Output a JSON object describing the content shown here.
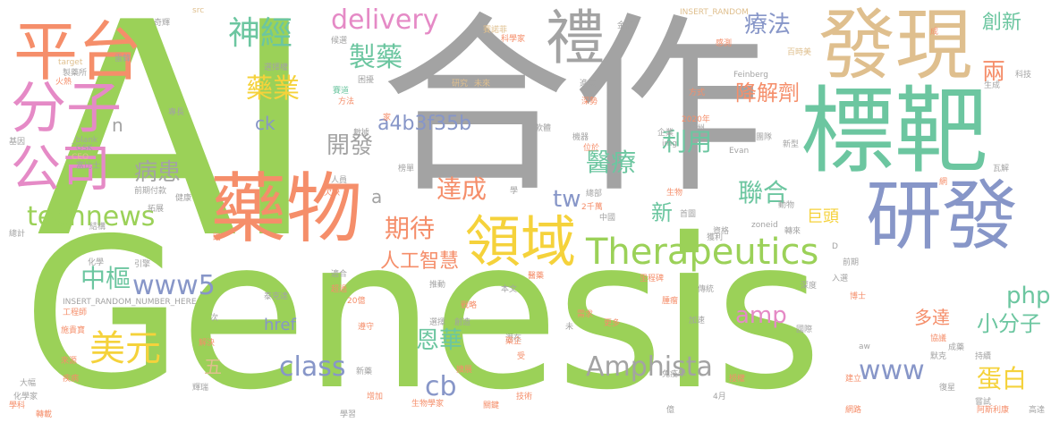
{
  "palette": {
    "green": "#9bd158",
    "grey": "#a3a3a3",
    "teal": "#6cc6a0",
    "blue": "#8796c8",
    "orange": "#f58e6a",
    "pink": "#e58ac6",
    "tan": "#dfbf8e",
    "yellow": "#f5d23b"
  },
  "words": [
    {
      "text": "AI"
    },
    {
      "text": "Genesis"
    },
    {
      "text": "合作"
    },
    {
      "text": "標靶"
    },
    {
      "text": "藥物"
    },
    {
      "text": "發現"
    },
    {
      "text": "研發"
    },
    {
      "text": "禮"
    },
    {
      "text": "平台"
    },
    {
      "text": "分子"
    },
    {
      "text": "公司"
    },
    {
      "text": "領域"
    },
    {
      "text": "Therapeutics"
    },
    {
      "text": "Amphista"
    },
    {
      "text": "delivery"
    },
    {
      "text": "technews"
    },
    {
      "text": "www5"
    },
    {
      "text": "a4b3f35b"
    },
    {
      "text": "神經"
    },
    {
      "text": "製藥"
    },
    {
      "text": "藥業"
    },
    {
      "text": "療法"
    },
    {
      "text": "創新"
    },
    {
      "text": "降解劑"
    },
    {
      "text": "兩"
    },
    {
      "text": "醫療"
    },
    {
      "text": "利用"
    },
    {
      "text": "聯合"
    },
    {
      "text": "開發"
    },
    {
      "text": "病患"
    },
    {
      "text": "達成"
    },
    {
      "text": "期待"
    },
    {
      "text": "人工智慧"
    },
    {
      "text": "中樞"
    },
    {
      "text": "美元"
    },
    {
      "text": "恩華"
    },
    {
      "text": "小分子"
    },
    {
      "text": "蛋白"
    },
    {
      "text": "多達"
    },
    {
      "text": "class"
    },
    {
      "text": "www"
    },
    {
      "text": "amp"
    },
    {
      "text": "php"
    },
    {
      "text": "cb"
    },
    {
      "text": "href"
    },
    {
      "text": "tw"
    },
    {
      "text": "ck"
    },
    {
      "text": "新"
    },
    {
      "text": "巨頭"
    },
    {
      "text": "n"
    },
    {
      "text": "a"
    },
    {
      "text": "五"
    },
    {
      "text": "src"
    },
    {
      "text": "INSERT_RANDOM"
    },
    {
      "text": "金額"
    },
    {
      "text": "賽諾菲"
    },
    {
      "text": "成"
    },
    {
      "text": "科學家"
    },
    {
      "text": "感測"
    },
    {
      "text": "百時美"
    },
    {
      "text": "科技"
    },
    {
      "text": "Feinberg"
    },
    {
      "text": "製藥所"
    },
    {
      "text": "雷鋒"
    },
    {
      "text": "target"
    },
    {
      "text": "火熱"
    },
    {
      "text": "選擇權"
    },
    {
      "text": "奇輝"
    },
    {
      "text": "候選"
    },
    {
      "text": "賽道"
    },
    {
      "text": "研究"
    },
    {
      "text": "未來"
    },
    {
      "text": "進度"
    },
    {
      "text": "困擾"
    },
    {
      "text": "方法"
    },
    {
      "text": "方式"
    },
    {
      "text": "深勢"
    },
    {
      "text": "生成"
    },
    {
      "text": "專長"
    },
    {
      "text": "數據"
    },
    {
      "text": "家"
    },
    {
      "text": "軟體"
    },
    {
      "text": "2020年"
    },
    {
      "text": "加州"
    },
    {
      "text": "企業"
    },
    {
      "text": "團隊"
    },
    {
      "text": "新型"
    },
    {
      "text": "瓦解"
    },
    {
      "text": "Evan"
    },
    {
      "text": "_blank"
    },
    {
      "text": "GSK"
    },
    {
      "text": "CEO"
    },
    {
      "text": "富比士"
    },
    {
      "text": "基因"
    },
    {
      "text": "前期付款"
    },
    {
      "text": "健康"
    },
    {
      "text": "拓展"
    },
    {
      "text": "總計"
    },
    {
      "text": "結構"
    },
    {
      "text": "人員"
    },
    {
      "text": "欠缺"
    },
    {
      "text": "榜單"
    },
    {
      "text": "學"
    },
    {
      "text": "總部"
    },
    {
      "text": "生物"
    },
    {
      "text": "中國"
    },
    {
      "text": "首圖"
    },
    {
      "text": "動物"
    },
    {
      "text": "zoneid"
    },
    {
      "text": "獲利"
    },
    {
      "text": "化學"
    },
    {
      "text": "引擎"
    },
    {
      "text": "化學家"
    },
    {
      "text": "適合"
    },
    {
      "text": "推動"
    },
    {
      "text": "本文"
    },
    {
      "text": "里程碑"
    },
    {
      "text": "入選"
    },
    {
      "text": "深度"
    },
    {
      "text": "前期"
    },
    {
      "text": "博士"
    },
    {
      "text": "INSERT_RANDOM_NUMBER_HERE"
    },
    {
      "text": "工程師"
    },
    {
      "text": "泰克達"
    },
    {
      "text": "超過"
    },
    {
      "text": "20億"
    },
    {
      "text": "戰略"
    },
    {
      "text": "選擇"
    },
    {
      "text": "創造"
    },
    {
      "text": "需求"
    },
    {
      "text": "腫瘤"
    },
    {
      "text": "傳統"
    },
    {
      "text": "加速"
    },
    {
      "text": "國際"
    },
    {
      "text": "施貴寶"
    },
    {
      "text": "次"
    },
    {
      "text": "解決"
    },
    {
      "text": "來源"
    },
    {
      "text": "遵守"
    },
    {
      "text": "潛在"
    },
    {
      "text": "更多"
    },
    {
      "text": "藥企"
    },
    {
      "text": "aw"
    },
    {
      "text": "協議"
    },
    {
      "text": "成藥"
    },
    {
      "text": "默克"
    },
    {
      "text": "持續"
    },
    {
      "text": "大幅"
    },
    {
      "text": "疾病"
    },
    {
      "text": "新藥"
    },
    {
      "text": "擴展"
    },
    {
      "text": "受"
    },
    {
      "text": "技術"
    },
    {
      "text": "免疫學"
    },
    {
      "text": "授權"
    },
    {
      "text": "建立"
    },
    {
      "text": "復星"
    },
    {
      "text": "轉載"
    },
    {
      "text": "增加"
    },
    {
      "text": "生物學家"
    },
    {
      "text": "關鍵"
    },
    {
      "text": "億"
    },
    {
      "text": "網路"
    },
    {
      "text": "阿斯利康"
    },
    {
      "text": "高達"
    },
    {
      "text": "學習"
    },
    {
      "text": "學科"
    },
    {
      "text": "嘗試"
    },
    {
      "text": "輝瑞"
    },
    {
      "text": "4月"
    },
    {
      "text": "醫藥"
    },
    {
      "text": "2千萬"
    },
    {
      "text": "轉來"
    },
    {
      "text": "資格"
    },
    {
      "text": "D"
    },
    {
      "text": "網"
    },
    {
      "text": "路"
    },
    {
      "text": "機器"
    },
    {
      "text": "位於"
    },
    {
      "text": "img"
    },
    {
      "text": "未"
    }
  ]
}
